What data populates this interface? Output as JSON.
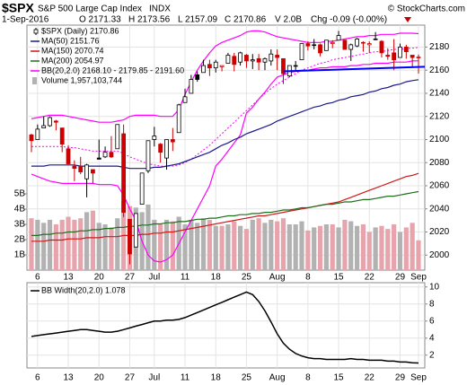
{
  "header": {
    "symbol": "$SPX",
    "name": "S&P 500 Large Cap Index",
    "exchange": "INDX",
    "copyright": "© StockCharts.com",
    "date": "1-Sep-2016",
    "open": "O 2171.33",
    "high": "H 2173.56",
    "low": "L 2157.09",
    "close": "C 2170.86",
    "volume": "V 2.0B",
    "change": "Chg -0.09 (-0.00%)"
  },
  "chart_data": [
    {
      "type": "candlestick",
      "name": "$SPX (Daily) 2170.86",
      "categories": [
        null,
        "6",
        null,
        null,
        null,
        null,
        "13",
        null,
        null,
        null,
        null,
        "20",
        null,
        null,
        null,
        null,
        "27",
        null,
        null,
        null,
        "Jul",
        null,
        null,
        null,
        null,
        "11",
        null,
        null,
        null,
        null,
        "18",
        null,
        null,
        null,
        null,
        "25",
        null,
        null,
        null,
        null,
        "Aug",
        null,
        null,
        null,
        null,
        "8",
        null,
        null,
        null,
        null,
        "15",
        null,
        null,
        null,
        null,
        "22",
        null,
        null,
        null,
        null,
        "29",
        null,
        null,
        "Sep"
      ],
      "open": [
        2104,
        2100,
        2110,
        2112,
        2116,
        2110,
        2092,
        2077,
        2077,
        2066,
        2074,
        2084,
        2085,
        2089,
        2092,
        2105,
        2031,
        2007,
        2044,
        2073,
        2100,
        2096,
        2084,
        2100,
        2106,
        2132,
        2140,
        2156,
        2158,
        2165,
        2162,
        2163,
        2166,
        2172,
        2167,
        2173,
        2168,
        2170,
        2167,
        2168,
        2173,
        2170,
        2155,
        2164,
        2169,
        2183,
        2182,
        2182,
        2177,
        2183,
        2186,
        2186,
        2178,
        2181,
        2184,
        2182,
        2187,
        2185,
        2173,
        2175,
        2171,
        2180,
        2173,
        2171.33
      ],
      "high": [
        2105,
        2113,
        2120,
        2120,
        2117,
        2110,
        2095,
        2082,
        2085,
        2079,
        2074,
        2100,
        2094,
        2103,
        2113,
        2113,
        2031,
        2036,
        2071,
        2099,
        2111,
        2097,
        2100,
        2110,
        2131,
        2144,
        2156,
        2159,
        2169,
        2169,
        2169,
        2164,
        2175,
        2175,
        2176,
        2174,
        2174,
        2174,
        2171,
        2178,
        2178,
        2170,
        2164,
        2168,
        2183,
        2185,
        2187,
        2183,
        2186,
        2186,
        2194,
        2186,
        2183,
        2188,
        2185,
        2185,
        2193,
        2186,
        2179,
        2187,
        2183,
        2182,
        2173,
        2173.56
      ],
      "low": [
        2089,
        2100,
        2110,
        2111,
        2108,
        2089,
        2079,
        2064,
        2070,
        2050,
        2062,
        2083,
        2084,
        2084,
        2092,
        2033,
        1992,
        2007,
        2044,
        2071,
        2094,
        2080,
        2074,
        2090,
        2106,
        2132,
        2140,
        2150,
        2158,
        2155,
        2158,
        2159,
        2166,
        2159,
        2164,
        2162,
        2161,
        2160,
        2160,
        2164,
        2160,
        2148,
        2154,
        2159,
        2169,
        2177,
        2178,
        2172,
        2177,
        2179,
        2186,
        2178,
        2168,
        2180,
        2176,
        2175,
        2186,
        2171,
        2169,
        2160,
        2171,
        2170,
        2162,
        2157.09
      ],
      "close": [
        2099,
        2109,
        2112,
        2119,
        2115,
        2096,
        2079,
        2075,
        2072,
        2078,
        2071,
        2083,
        2089,
        2085,
        2113,
        2037,
        2001,
        2036,
        2071,
        2099,
        2103,
        2089,
        2100,
        2098,
        2130,
        2137,
        2152,
        2152,
        2164,
        2162,
        2167,
        2164,
        2173,
        2165,
        2175,
        2168,
        2169,
        2167,
        2170,
        2174,
        2171,
        2157,
        2164,
        2164,
        2183,
        2181,
        2182,
        2175,
        2186,
        2184,
        2190,
        2178,
        2182,
        2187,
        2184,
        2183,
        2187,
        2175,
        2172,
        2169,
        2180,
        2176,
        2171,
        2170.86
      ],
      "up_color": "#000000",
      "down_color": "#cc0000",
      "ylim": [
        1987,
        2199
      ],
      "yticks": [
        2000,
        2020,
        2040,
        2060,
        2080,
        2100,
        2120,
        2140,
        2160,
        2180
      ],
      "grid": true,
      "series": [
        {
          "name": "MA(50) 2151.76",
          "color": "#1a1a8c",
          "values": [
            2077,
            2077,
            2077,
            2078,
            2078,
            2078,
            2078,
            2078,
            2077,
            2077,
            2077,
            2077,
            2077,
            2077,
            2077,
            2076,
            2075,
            2075,
            2075,
            2075,
            2076,
            2076,
            2077,
            2078,
            2079,
            2081,
            2083,
            2085,
            2087,
            2089,
            2092,
            2095,
            2097,
            2100,
            2102,
            2105,
            2107,
            2109,
            2111,
            2113,
            2116,
            2118,
            2120,
            2122,
            2124,
            2126,
            2128,
            2129,
            2131,
            2132,
            2134,
            2135,
            2137,
            2138,
            2139,
            2141,
            2142,
            2144,
            2145,
            2147,
            2148,
            2150,
            2151,
            2151.76
          ]
        },
        {
          "name": "MA(150) 2070.74",
          "color": "#d01818",
          "values": [
            2012,
            2012,
            2012,
            2013,
            2013,
            2013,
            2014,
            2014,
            2014,
            2015,
            2015,
            2015,
            2016,
            2016,
            2016,
            2017,
            2017,
            2017,
            2018,
            2018,
            2019,
            2019,
            2020,
            2020,
            2021,
            2022,
            2023,
            2024,
            2025,
            2026,
            2027,
            2028,
            2029,
            2030,
            2031,
            2032,
            2033,
            2034,
            2034,
            2035,
            2036,
            2037,
            2038,
            2039,
            2040,
            2041,
            2042,
            2043,
            2044,
            2045,
            2046,
            2048,
            2050,
            2052,
            2054,
            2056,
            2058,
            2060,
            2062,
            2064,
            2066,
            2068,
            2069,
            2070.74
          ]
        },
        {
          "name": "MA(200) 2054.97",
          "color": "#1e6e1e",
          "values": [
            2017,
            2017,
            2018,
            2018,
            2019,
            2019,
            2020,
            2020,
            2021,
            2021,
            2022,
            2022,
            2023,
            2023,
            2024,
            2024,
            2025,
            2025,
            2026,
            2026,
            2027,
            2027,
            2028,
            2028,
            2029,
            2029,
            2030,
            2031,
            2031,
            2032,
            2032,
            2033,
            2034,
            2034,
            2035,
            2035,
            2036,
            2036,
            2037,
            2037,
            2038,
            2039,
            2039,
            2040,
            2041,
            2041,
            2042,
            2043,
            2044,
            2044,
            2045,
            2046,
            2046,
            2047,
            2048,
            2048,
            2049,
            2050,
            2051,
            2051,
            2052,
            2053,
            2054,
            2054.97
          ]
        }
      ],
      "bands": {
        "name": "BB(20,2.0) 2168.10 - 2179.85 - 2191.60",
        "color": "#ff00ff",
        "lower": [
          2070,
          2068,
          2066,
          2064,
          2063,
          2062,
          2062,
          2062,
          2062,
          2062,
          2062,
          2061,
          2061,
          2061,
          2060,
          2052,
          2040,
          2030,
          2012,
          2000,
          1995,
          1994,
          1996,
          2000,
          2010,
          2020,
          2030,
          2040,
          2050,
          2060,
          2077,
          2083,
          2090,
          2097,
          2104,
          2123,
          2128,
          2135,
          2141,
          2148,
          2154,
          2156,
          2158,
          2159,
          2160,
          2160,
          2161,
          2162,
          2162,
          2163,
          2163,
          2163,
          2164,
          2164,
          2165,
          2165,
          2166,
          2166,
          2166,
          2167,
          2167,
          2167,
          2168,
          2168.1
        ],
        "middle": [
          2094,
          2094,
          2094,
          2094,
          2094,
          2094,
          2093,
          2093,
          2092,
          2091,
          2090,
          2090,
          2090,
          2090,
          2090,
          2088,
          2085,
          2083,
          2081,
          2079,
          2078,
          2077,
          2077,
          2077,
          2078,
          2080,
          2083,
          2087,
          2091,
          2095,
          2100,
          2105,
          2110,
          2115,
          2120,
          2125,
          2130,
          2135,
          2140,
          2144,
          2148,
          2151,
          2154,
          2157,
          2160,
          2162,
          2164,
          2166,
          2167,
          2169,
          2170,
          2171,
          2172,
          2173,
          2174,
          2175,
          2176,
          2176,
          2177,
          2178,
          2178,
          2179,
          2179,
          2179.85
        ],
        "upper": [
          2118,
          2119,
          2120,
          2121,
          2121,
          2121,
          2120,
          2119,
          2118,
          2117,
          2116,
          2115,
          2115,
          2115,
          2116,
          2117,
          2120,
          2121,
          2121,
          2121,
          2121,
          2120,
          2120,
          2120,
          2126,
          2139,
          2150,
          2160,
          2168,
          2175,
          2181,
          2184,
          2186,
          2188,
          2190,
          2193,
          2194,
          2194,
          2193,
          2191,
          2189,
          2188,
          2187,
          2186,
          2185,
          2184,
          2184,
          2184,
          2185,
          2185,
          2186,
          2187,
          2188,
          2189,
          2189,
          2190,
          2190,
          2191,
          2191,
          2191,
          2192,
          2192,
          2192,
          2191.6
        ]
      },
      "trendline": {
        "color": "#0000ff",
        "values": [
          2159,
          2163
        ]
      },
      "volume": {
        "name": "Volume 1,957,103,744",
        "axis": "y2",
        "up_color": "#b2b2b2",
        "down_color": "#e8a4ac",
        "values": [
          3400000000,
          3300000000,
          3100000000,
          3300000000,
          3000000000,
          3300000000,
          3500000000,
          3300000000,
          3400000000,
          3800000000,
          3900000000,
          3100000000,
          3000000000,
          2800000000,
          3400000000,
          4500000000,
          4200000000,
          4100000000,
          3800000000,
          4300000000,
          3300000000,
          3000000000,
          3300000000,
          3200000000,
          3500000000,
          3000000000,
          3300000000,
          3100000000,
          3400000000,
          3300000000,
          2900000000,
          2900000000,
          3000000000,
          3200000000,
          2900000000,
          2700000000,
          3300000000,
          3400000000,
          3100000000,
          3300000000,
          3200000000,
          3400000000,
          3000000000,
          3000000000,
          3200000000,
          2600000000,
          2800000000,
          2900000000,
          3000000000,
          3000000000,
          2800000000,
          3300000000,
          3200000000,
          2900000000,
          3000000000,
          2500000000,
          2800000000,
          2900000000,
          2700000000,
          3000000000,
          2500000000,
          2800000000,
          3100000000,
          1957103744
        ]
      },
      "y2lim": [
        0,
        16060000000
      ],
      "y2ticks": [
        {
          "value": 1000000000,
          "label": "1B"
        },
        {
          "value": 2000000000,
          "label": "2B"
        },
        {
          "value": 3000000000,
          "label": "3B"
        },
        {
          "value": 4000000000,
          "label": "4B"
        },
        {
          "value": 5000000000,
          "label": "5B"
        }
      ]
    },
    {
      "type": "line",
      "categories": [
        null,
        "6",
        null,
        null,
        null,
        null,
        "13",
        null,
        null,
        null,
        null,
        "20",
        null,
        null,
        null,
        null,
        "27",
        null,
        null,
        null,
        "Jul",
        null,
        null,
        null,
        null,
        "11",
        null,
        null,
        null,
        null,
        "18",
        null,
        null,
        null,
        null,
        "25",
        null,
        null,
        null,
        null,
        "Aug",
        null,
        null,
        null,
        null,
        "8",
        null,
        null,
        null,
        null,
        "15",
        null,
        null,
        null,
        null,
        "22",
        null,
        null,
        null,
        null,
        "29",
        null,
        null,
        "Sep"
      ],
      "series": [
        {
          "name": "BB Width(20,2.0) 1.078",
          "color": "#000000",
          "values": [
            4.2,
            4.3,
            4.4,
            4.5,
            4.6,
            4.7,
            4.8,
            4.9,
            5.0,
            5.0,
            4.9,
            4.8,
            4.7,
            4.7,
            4.8,
            5.0,
            5.2,
            5.4,
            5.6,
            5.8,
            6.0,
            6.0,
            6.1,
            6.1,
            6.2,
            6.4,
            6.7,
            7.0,
            7.3,
            7.6,
            7.9,
            8.2,
            8.5,
            8.8,
            9.1,
            9.4,
            9.1,
            8.3,
            7.2,
            5.9,
            4.5,
            3.4,
            2.7,
            2.2,
            1.9,
            1.7,
            1.6,
            1.6,
            1.5,
            1.5,
            1.5,
            1.5,
            1.6,
            1.5,
            1.5,
            1.4,
            1.4,
            1.4,
            1.3,
            1.3,
            1.2,
            1.2,
            1.1,
            1.078
          ]
        }
      ],
      "ylim": [
        0.5,
        10.5
      ],
      "yticks": [
        2,
        4,
        6,
        8,
        10
      ],
      "grid": true
    }
  ]
}
